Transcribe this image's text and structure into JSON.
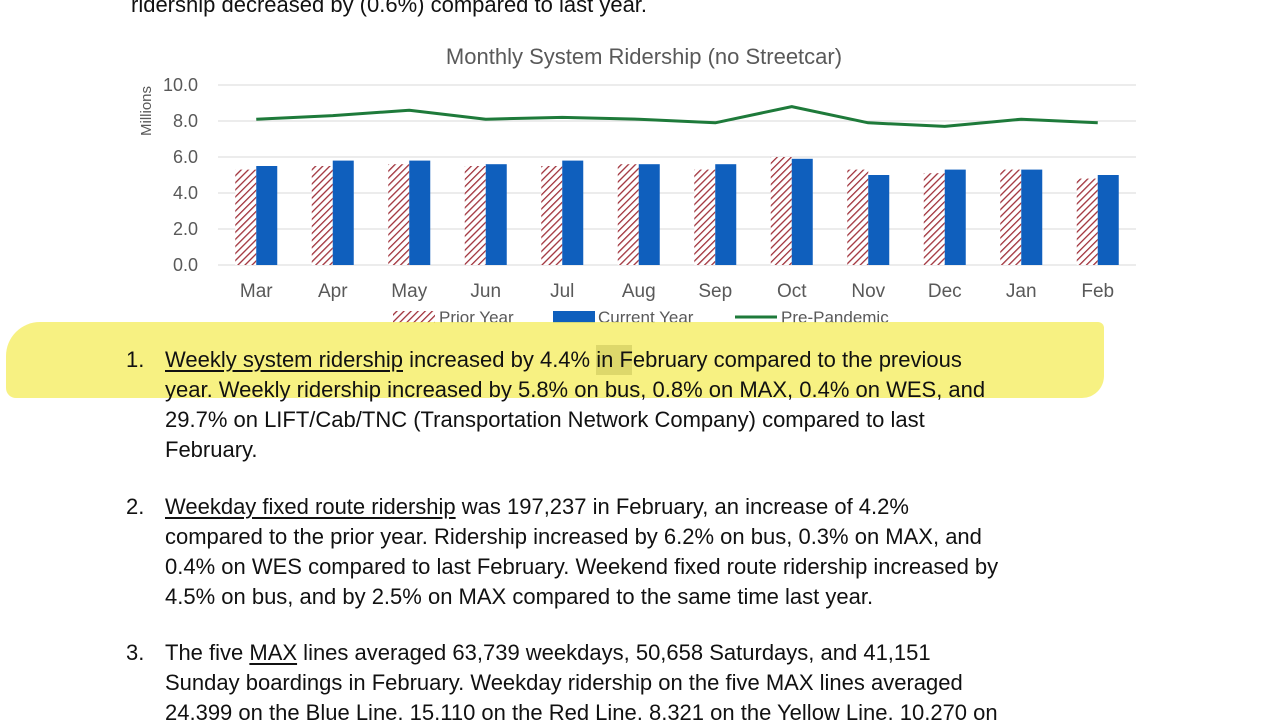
{
  "top_text": "ridership decreased by (0.6%) compared to last year.",
  "chart_data": {
    "type": "bar",
    "title": "Monthly System Ridership (no Streetcar)",
    "ylabel": "Millions",
    "ylim": [
      0,
      10
    ],
    "yticks": [
      "0.0",
      "2.0",
      "4.0",
      "6.0",
      "8.0",
      "10.0"
    ],
    "categories": [
      "Mar",
      "Apr",
      "May",
      "Jun",
      "Jul",
      "Aug",
      "Sep",
      "Oct",
      "Nov",
      "Dec",
      "Jan",
      "Feb"
    ],
    "series": [
      {
        "name": "Prior Year",
        "kind": "bar",
        "pattern": "hatched",
        "color": "#a0313a",
        "values": [
          5.3,
          5.5,
          5.6,
          5.5,
          5.5,
          5.6,
          5.3,
          6.0,
          5.3,
          5.1,
          5.3,
          4.8
        ]
      },
      {
        "name": "Current Year",
        "kind": "bar",
        "color": "#0f5fbd",
        "values": [
          5.5,
          5.8,
          5.8,
          5.6,
          5.8,
          5.6,
          5.6,
          5.9,
          5.0,
          5.3,
          5.3,
          5.0
        ]
      },
      {
        "name": "Pre-Pandemic",
        "kind": "line",
        "color": "#1e7a3a",
        "values": [
          8.1,
          8.3,
          8.6,
          8.1,
          8.2,
          8.1,
          7.9,
          8.8,
          7.9,
          7.7,
          8.1,
          7.9
        ]
      }
    ],
    "grid": true,
    "legend_placement": "bottom"
  },
  "items": [
    {
      "num": "1.",
      "lines": [
        {
          "u": "Weekly system ridership",
          "rest": " increased by 4.4% in February compared to the previous"
        },
        {
          "u": "",
          "rest": "year.  Weekly ridership increased by 5.8% on bus, 0.8% on MAX, 0.4% on WES, and"
        },
        {
          "u": "",
          "rest": "29.7% on LIFT/Cab/TNC (Transportation Network Company) compared to last"
        },
        {
          "u": "",
          "rest": "February."
        }
      ]
    },
    {
      "num": "2.",
      "lines": [
        {
          "u": "Weekday fixed route ridership",
          "rest": " was 197,237 in February, an increase of 4.2%"
        },
        {
          "u": "",
          "rest": "compared to the prior year.  Ridership increased by 6.2% on bus, 0.3% on MAX, and"
        },
        {
          "u": "",
          "rest": "0.4% on WES compared to last February.  Weekend fixed route ridership increased by"
        },
        {
          "u": "",
          "rest": "4.5% on bus, and by 2.5% on MAX compared to the same time last year."
        }
      ]
    },
    {
      "num": "3.",
      "lines": [
        {
          "pre": "The five ",
          "u": "MAX",
          "rest": " lines averaged 63,739 weekdays, 50,658 Saturdays, and 41,151"
        },
        {
          "u": "",
          "rest": "Sunday boardings in February.  Weekday ridership on the five MAX lines averaged"
        },
        {
          "u": "",
          "rest": "24,399 on the Blue Line, 15,110 on the Red Line, 8,321 on the Yellow Line, 10,270 on"
        }
      ]
    }
  ]
}
